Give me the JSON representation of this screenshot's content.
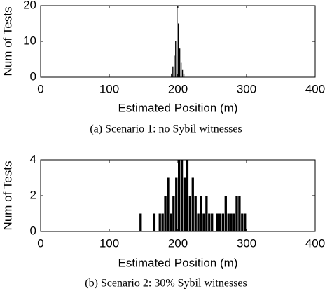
{
  "chart_data": [
    {
      "type": "histogram",
      "ylabel": "Num of Tests",
      "xlabel": "Estimated Position (m)",
      "caption": "(a) Scenario 1: no Sybil witnesses",
      "bins": [
        190,
        192,
        194,
        196,
        198,
        200,
        202,
        204,
        206,
        208,
        210
      ],
      "values": [
        1,
        3,
        6,
        10,
        20,
        15,
        8,
        4,
        2,
        1
      ],
      "color": "#000000",
      "xlim": [
        0,
        400
      ],
      "xticks": [
        0,
        100,
        200,
        300,
        400
      ],
      "ylim": [
        0,
        20
      ],
      "yticks": [
        0,
        10,
        20
      ]
    },
    {
      "type": "histogram",
      "ylabel": "Num of Tests",
      "xlabel": "Estimated Position (m)",
      "caption": "(b) Scenario 2: 30% Sybil witnesses",
      "bins": [
        144,
        148,
        152,
        156,
        160,
        164,
        168,
        172,
        176,
        180,
        184,
        188,
        192,
        196,
        200,
        204,
        208,
        212,
        216,
        220,
        224,
        228,
        232,
        236,
        240,
        244,
        248,
        252,
        256,
        260,
        264,
        268,
        272,
        276,
        280,
        284,
        288,
        292,
        296,
        300
      ],
      "values": [
        1,
        0,
        0,
        0,
        0,
        1,
        0,
        1,
        1,
        2,
        3,
        1,
        2,
        3,
        4,
        4,
        3,
        4,
        2,
        3,
        2,
        1,
        2,
        1,
        2,
        1,
        1,
        0,
        1,
        1,
        1,
        2,
        1,
        1,
        1,
        2,
        2,
        1,
        1
      ],
      "color": "#000000",
      "xlim": [
        0,
        400
      ],
      "xticks": [
        0,
        100,
        200,
        300,
        400
      ],
      "ylim": [
        0,
        4
      ],
      "yticks": [
        0,
        2,
        4
      ]
    }
  ]
}
